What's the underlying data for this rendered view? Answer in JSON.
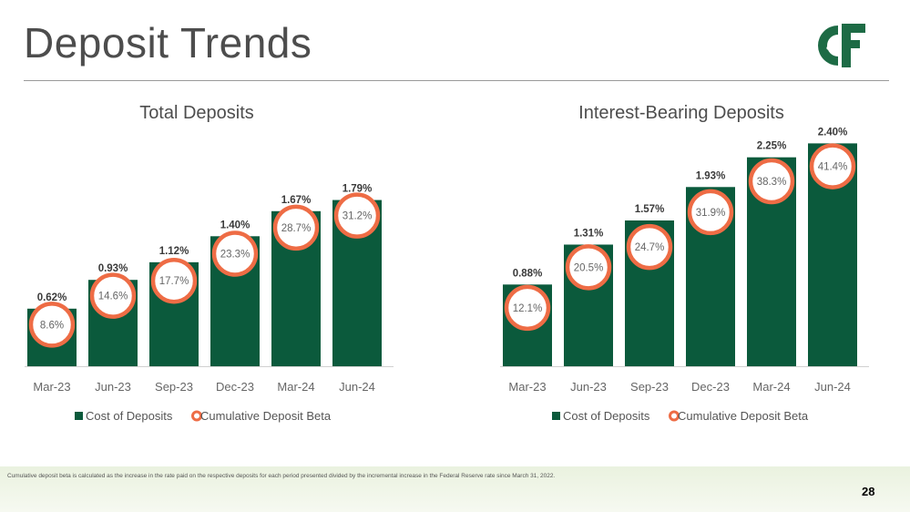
{
  "page": {
    "title": "Deposit Trends",
    "logo_text": "C&F",
    "footnote": "Cumulative deposit beta is calculated as the increase in the rate paid on the respective deposits for each period presented divided by the incremental increase in the Federal Reserve rate since March 31, 2022.",
    "page_number": "28"
  },
  "colors": {
    "bar": "#0b5a3c",
    "beta_ring": "#ee6c45",
    "logo": "#1d6b45"
  },
  "chart_data": [
    {
      "type": "bar",
      "title": "Total Deposits",
      "categories": [
        "Mar-23",
        "Jun-23",
        "Sep-23",
        "Dec-23",
        "Mar-24",
        "Jun-24"
      ],
      "series": [
        {
          "name": "Cost of Deposits",
          "values": [
            0.62,
            0.93,
            1.12,
            1.4,
            1.67,
            1.79
          ],
          "labels": [
            "0.62%",
            "0.93%",
            "1.12%",
            "1.40%",
            "1.67%",
            "1.79%"
          ]
        },
        {
          "name": "Cumulative Deposit Beta",
          "values": [
            8.6,
            14.6,
            17.7,
            23.3,
            28.7,
            31.2
          ],
          "labels": [
            "8.6%",
            "14.6%",
            "17.7%",
            "23.3%",
            "28.7%",
            "31.2%"
          ]
        }
      ],
      "ylim": [
        0,
        2.6
      ],
      "beta_ylim": [
        0,
        50
      ],
      "legend": [
        "Cost of Deposits",
        "Cumulative Deposit Beta"
      ],
      "legend_position": "bottom"
    },
    {
      "type": "bar",
      "title": "Interest-Bearing Deposits",
      "categories": [
        "Mar-23",
        "Jun-23",
        "Sep-23",
        "Dec-23",
        "Mar-24",
        "Jun-24"
      ],
      "series": [
        {
          "name": "Cost of Deposits",
          "values": [
            0.88,
            1.31,
            1.57,
            1.93,
            2.25,
            2.4
          ],
          "labels": [
            "0.88%",
            "1.31%",
            "1.57%",
            "1.93%",
            "2.25%",
            "2.40%"
          ]
        },
        {
          "name": "Cumulative Deposit Beta",
          "values": [
            12.1,
            20.5,
            24.7,
            31.9,
            38.3,
            41.4
          ],
          "labels": [
            "12.1%",
            "20.5%",
            "24.7%",
            "31.9%",
            "38.3%",
            "41.4%"
          ]
        }
      ],
      "ylim": [
        0,
        2.6
      ],
      "beta_ylim": [
        0,
        50
      ],
      "legend": [
        "Cost of Deposits",
        "Cumulative Deposit Beta"
      ],
      "legend_position": "bottom"
    }
  ]
}
